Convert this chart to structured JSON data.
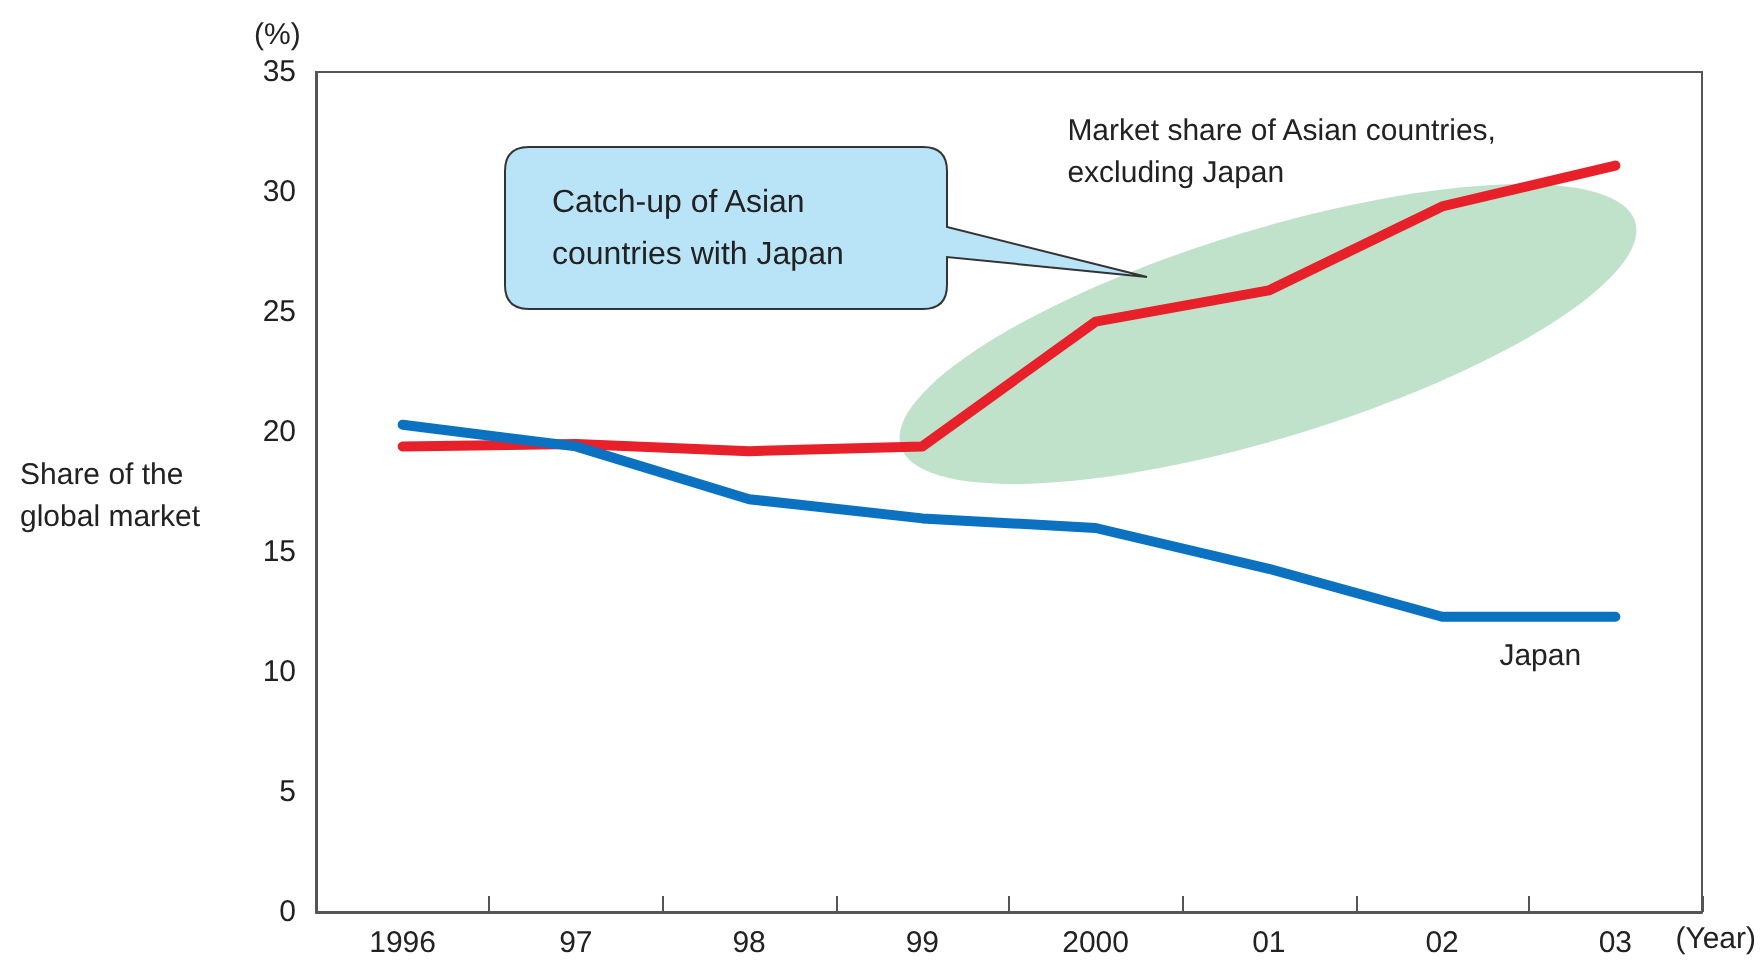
{
  "chart_data": {
    "type": "line",
    "categories": [
      "1996",
      "97",
      "98",
      "99",
      "2000",
      "01",
      "02",
      "03"
    ],
    "series": [
      {
        "name": "Market share of Asian countries, excluding Japan",
        "color": "#e8202a",
        "values": [
          19.4,
          19.5,
          19.2,
          19.4,
          24.6,
          25.9,
          29.4,
          31.1
        ]
      },
      {
        "name": "Japan",
        "color": "#0a72c0",
        "values": [
          20.3,
          19.4,
          17.2,
          16.4,
          16.0,
          14.3,
          12.3,
          12.3
        ]
      }
    ],
    "ylabel": "Share of the global market",
    "xlabel": "(Year)",
    "annotations": [
      "(%)",
      "Catch-up of Asian countries with Japan"
    ],
    "ylim": [
      0,
      35
    ],
    "yticks": [
      0,
      5,
      10,
      15,
      20,
      25,
      30,
      35
    ],
    "grid": false,
    "legend": false,
    "marker": "none",
    "line_style": "solid"
  }
}
